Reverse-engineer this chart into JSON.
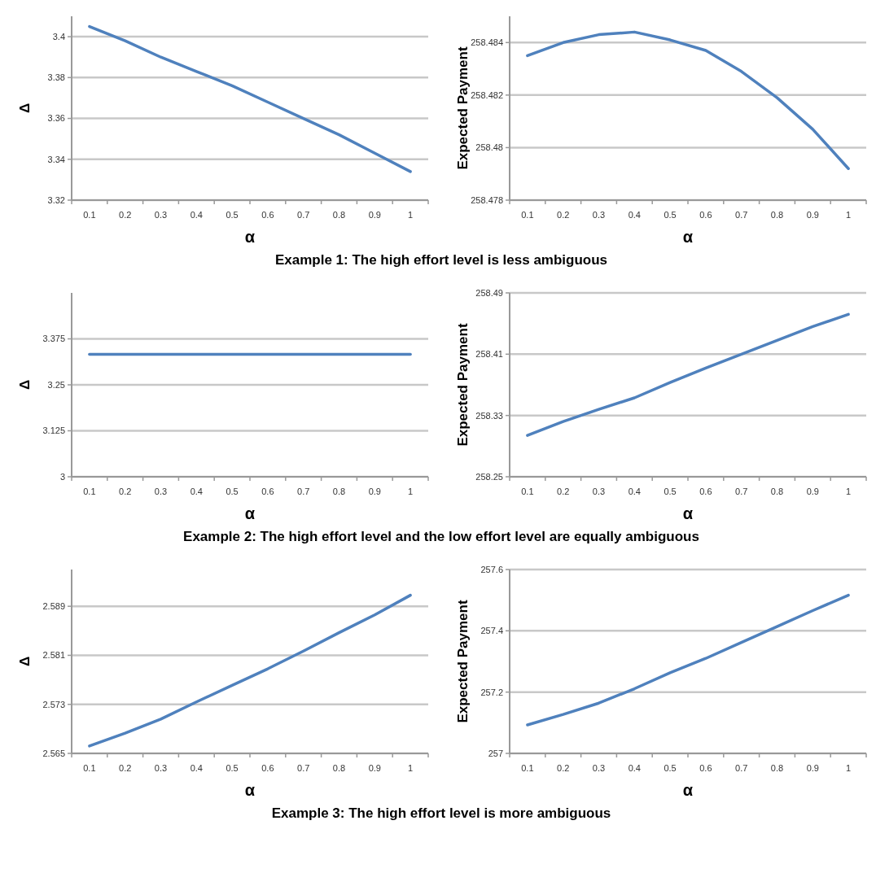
{
  "chart_data": [
    {
      "type": "line",
      "categories": [
        "0.1",
        "0.2",
        "0.3",
        "0.4",
        "0.5",
        "0.6",
        "0.7",
        "0.8",
        "0.9",
        "1"
      ],
      "series": [
        {
          "color": "#4f81bd",
          "values": [
            3.405,
            3.398,
            3.39,
            3.383,
            3.376,
            3.368,
            3.36,
            3.352,
            3.343,
            3.334
          ]
        }
      ],
      "xlabel": "α",
      "ylabel": "Δ",
      "ylim": [
        3.32,
        3.41
      ],
      "yticks": [
        3.32,
        3.34,
        3.36,
        3.38,
        3.4
      ],
      "grid": "y",
      "marker": "none",
      "line_style": "solid",
      "annotations": [
        "Example 1: The high effort level is less ambiguous"
      ]
    },
    {
      "type": "line",
      "categories": [
        "0.1",
        "0.2",
        "0.3",
        "0.4",
        "0.5",
        "0.6",
        "0.7",
        "0.8",
        "0.9",
        "1"
      ],
      "series": [
        {
          "color": "#4f81bd",
          "values": [
            258.4835,
            258.484,
            258.4843,
            258.4844,
            258.4841,
            258.4837,
            258.4829,
            258.4819,
            258.4807,
            258.4792
          ]
        }
      ],
      "xlabel": "α",
      "ylabel": "Expected Payment",
      "ylim": [
        258.478,
        258.485
      ],
      "yticks": [
        258.478,
        258.48,
        258.482,
        258.484
      ],
      "grid": "y",
      "marker": "none",
      "line_style": "solid"
    },
    {
      "type": "line",
      "categories": [
        "0.1",
        "0.2",
        "0.3",
        "0.4",
        "0.5",
        "0.6",
        "0.7",
        "0.8",
        "0.9",
        "1"
      ],
      "series": [
        {
          "color": "#4f81bd",
          "values": [
            3.333,
            3.333,
            3.333,
            3.333,
            3.333,
            3.333,
            3.333,
            3.333,
            3.333,
            3.333
          ]
        }
      ],
      "xlabel": "α",
      "ylabel": "Δ",
      "ylim": [
        3,
        3.5
      ],
      "yticks": [
        3,
        3.125,
        3.25,
        3.375
      ],
      "grid": "y",
      "marker": "none",
      "line_style": "solid",
      "annotations": [
        "Example 2: The high effort level and the low effort level are equally ambiguous"
      ]
    },
    {
      "type": "line",
      "categories": [
        "0.1",
        "0.2",
        "0.3",
        "0.4",
        "0.5",
        "0.6",
        "0.7",
        "0.8",
        "0.9",
        "1"
      ],
      "series": [
        {
          "color": "#4f81bd",
          "values": [
            258.304,
            258.322,
            258.338,
            258.353,
            258.373,
            258.392,
            258.41,
            258.428,
            258.446,
            258.462
          ]
        }
      ],
      "xlabel": "α",
      "ylabel": "Expected Payment",
      "ylim": [
        258.25,
        258.49
      ],
      "yticks": [
        258.25,
        258.33,
        258.41,
        258.49
      ],
      "grid": "y",
      "marker": "none",
      "line_style": "solid"
    },
    {
      "type": "line",
      "categories": [
        "0.1",
        "0.2",
        "0.3",
        "0.4",
        "0.5",
        "0.6",
        "0.7",
        "0.8",
        "0.9",
        "1"
      ],
      "series": [
        {
          "color": "#4f81bd",
          "values": [
            2.5662,
            2.5683,
            2.5706,
            2.5734,
            2.5761,
            2.5788,
            2.5817,
            2.5847,
            2.5876,
            2.5908
          ]
        }
      ],
      "xlabel": "α",
      "ylabel": "Δ",
      "ylim": [
        2.565,
        2.595
      ],
      "yticks": [
        2.565,
        2.573,
        2.581,
        2.589
      ],
      "grid": "y",
      "marker": "none",
      "line_style": "solid",
      "annotations": [
        "Example 3: The high effort level is more ambiguous"
      ]
    },
    {
      "type": "line",
      "categories": [
        "0.1",
        "0.2",
        "0.3",
        "0.4",
        "0.5",
        "0.6",
        "0.7",
        "0.8",
        "0.9",
        "1"
      ],
      "series": [
        {
          "color": "#4f81bd",
          "values": [
            257.093,
            257.127,
            257.164,
            257.211,
            257.263,
            257.31,
            257.362,
            257.414,
            257.466,
            257.516
          ]
        }
      ],
      "xlabel": "α",
      "ylabel": "Expected Payment",
      "ylim": [
        257,
        257.6
      ],
      "yticks": [
        257,
        257.2,
        257.4,
        257.6
      ],
      "grid": "y",
      "marker": "none",
      "line_style": "solid"
    }
  ]
}
